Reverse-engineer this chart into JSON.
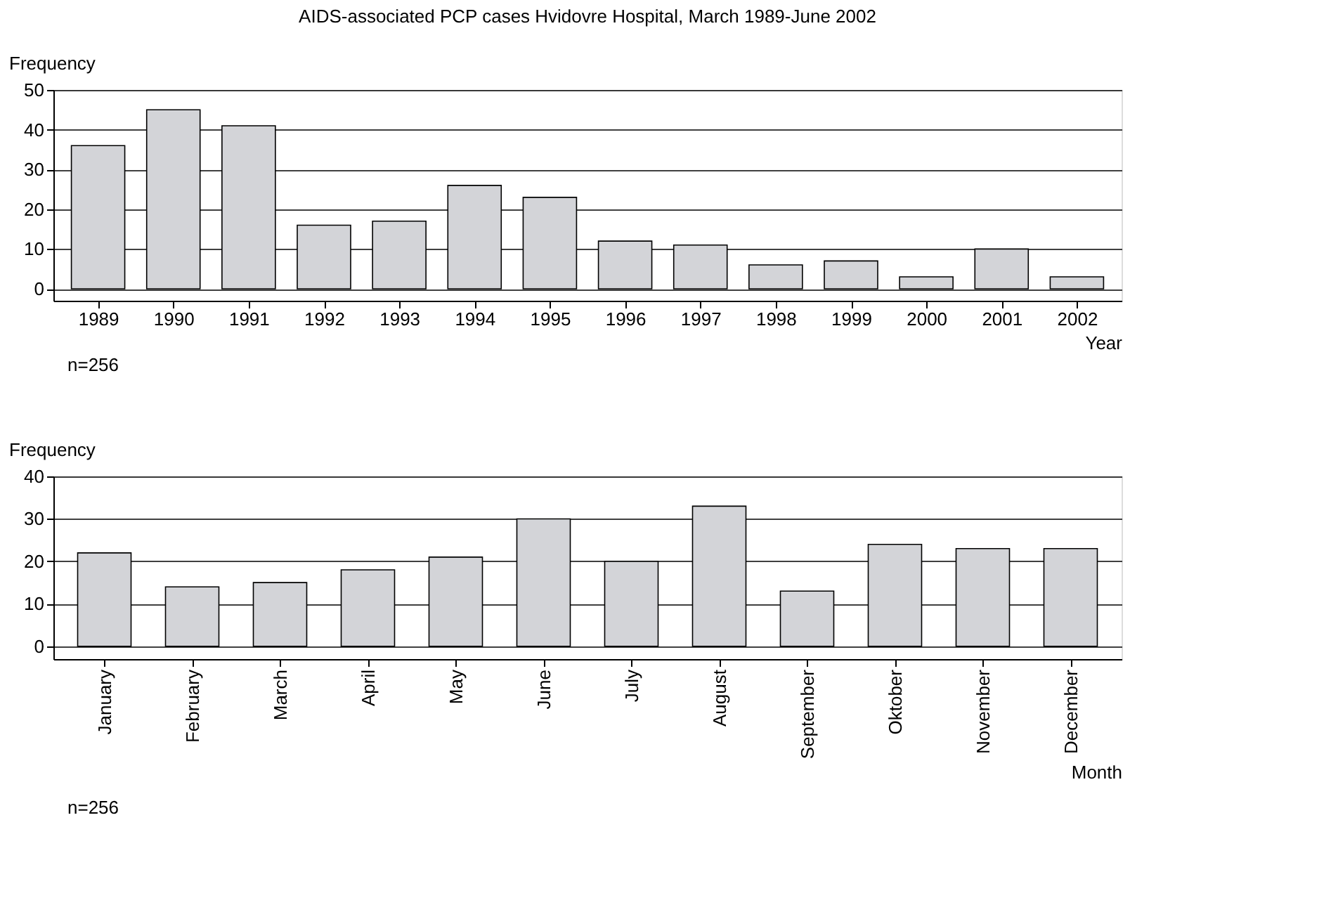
{
  "chart_data": [
    {
      "type": "bar",
      "title": "AIDS-associated PCP cases Hvidovre Hospital, March 1989-June 2002",
      "xlabel": "Year",
      "ylabel": "Frequency",
      "categories": [
        "1989",
        "1990",
        "1991",
        "1992",
        "1993",
        "1994",
        "1995",
        "1996",
        "1997",
        "1998",
        "1999",
        "2000",
        "2001",
        "2002"
      ],
      "values": [
        36,
        45,
        41,
        16,
        17,
        26,
        23,
        12,
        11,
        6,
        7,
        3,
        10,
        3
      ],
      "color": "#d3d4d8",
      "ylim": [
        -3,
        50
      ],
      "yticks": [
        0,
        10,
        20,
        30,
        40,
        50
      ],
      "grid": "y",
      "annotations": [
        "n=256"
      ]
    },
    {
      "type": "bar",
      "xlabel": "Month",
      "ylabel": "Frequency",
      "categories": [
        "January",
        "February",
        "March",
        "April",
        "May",
        "June",
        "July",
        "August",
        "September",
        "Oktober",
        "November",
        "December"
      ],
      "values": [
        22,
        14,
        15,
        18,
        21,
        30,
        20,
        33,
        13,
        24,
        23,
        23
      ],
      "color": "#d3d4d8",
      "ylim": [
        -3,
        40
      ],
      "yticks": [
        0,
        10,
        20,
        30,
        40
      ],
      "grid": "y",
      "annotations": [
        "n=256"
      ]
    }
  ]
}
